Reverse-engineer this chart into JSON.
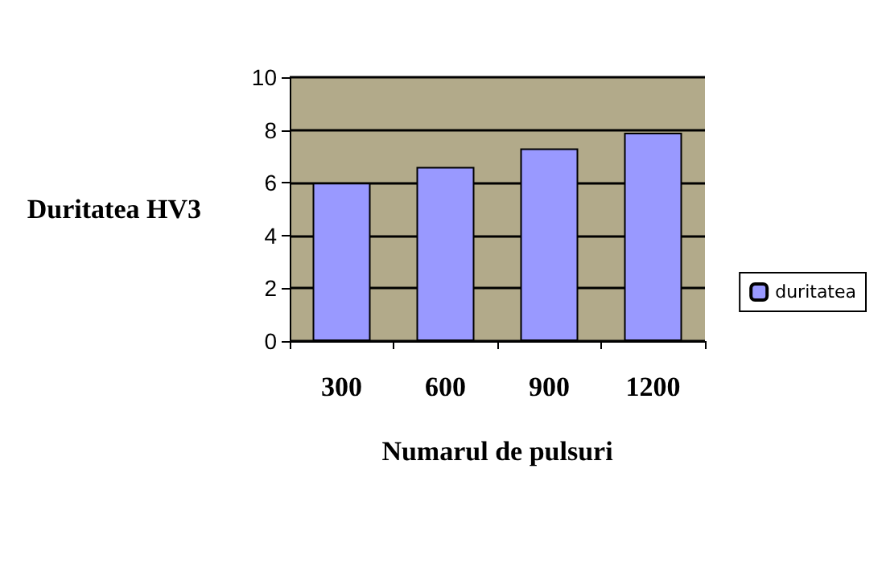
{
  "chart_data": {
    "type": "bar",
    "xlabel": "Numarul de pulsuri",
    "ylabel": "Duritatea HV3",
    "categories": [
      "300",
      "600",
      "900",
      "1200"
    ],
    "series": [
      {
        "name": "duritatea",
        "color": "#9999ff",
        "values": [
          6.0,
          6.6,
          7.3,
          7.9
        ]
      }
    ],
    "ylim": [
      0,
      10
    ],
    "yticks": [
      0,
      2,
      4,
      6,
      8,
      10
    ],
    "grid": "y",
    "legend": "right"
  }
}
